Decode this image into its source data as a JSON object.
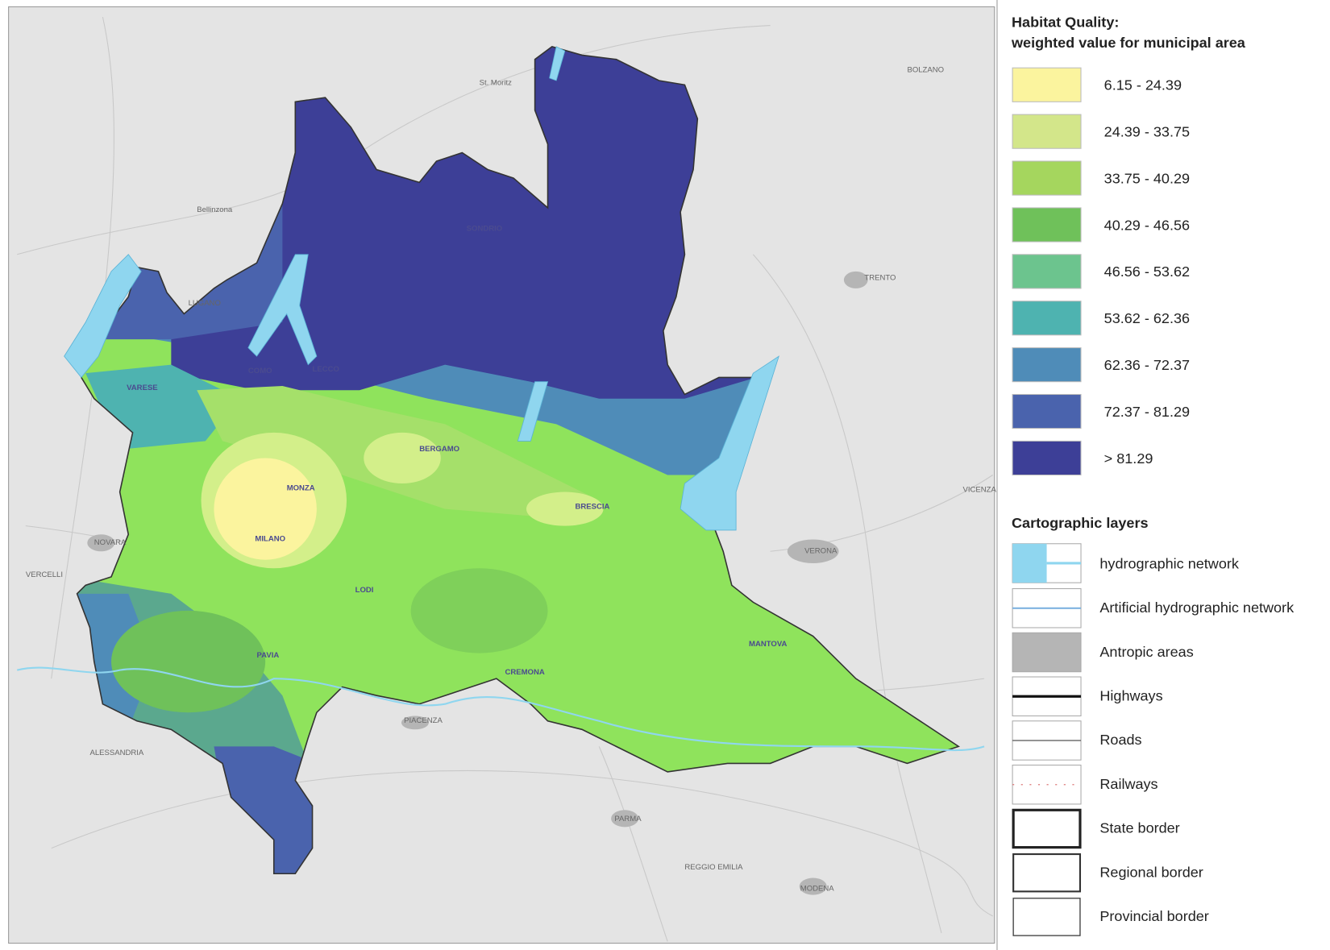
{
  "legend": {
    "title": "Habitat Quality:",
    "subtitle": "weighted value for municipal area",
    "classes": [
      {
        "label": "6.15 - 24.39",
        "color": "#fbf49e"
      },
      {
        "label": "24.39 - 33.75",
        "color": "#d3e68a"
      },
      {
        "label": "33.75 - 40.29",
        "color": "#a5d65e"
      },
      {
        "label": "40.29 - 46.56",
        "color": "#6fc15a"
      },
      {
        "label": "46.56 - 53.62",
        "color": "#6cc48e"
      },
      {
        "label": "53.62 - 62.36",
        "color": "#4eb3b0"
      },
      {
        "label": "62.36 - 72.37",
        "color": "#4f8cb8"
      },
      {
        "label": "72.37 - 81.29",
        "color": "#4a63ad"
      },
      {
        "label": "> 81.29",
        "color": "#3d3f97"
      }
    ]
  },
  "layers": {
    "title": "Cartographic layers",
    "items": [
      "hydrographic network",
      "Artificial hydrographic network",
      "Antropic areas",
      "Highways",
      "Roads",
      "Railways",
      "State border",
      "Regional border",
      "Provincial border"
    ]
  },
  "map_labels": {
    "outside": [
      "St. Moritz",
      "BOLZANO",
      "TRENTO",
      "VICENZA",
      "VERONA",
      "NOVARA",
      "VERCELLI",
      "ALESSANDRIA",
      "PIACENZA",
      "PARMA",
      "REGGIO EMILIA",
      "MODENA",
      "Bellinzona",
      "LUGANO"
    ],
    "inside": [
      "SONDRIO",
      "LECCO",
      "COMO",
      "VARESE",
      "BERGAMO",
      "BRESCIA",
      "MONZA",
      "MILANO",
      "LODI",
      "CREMONA",
      "MANTOVA",
      "PAVIA"
    ]
  }
}
